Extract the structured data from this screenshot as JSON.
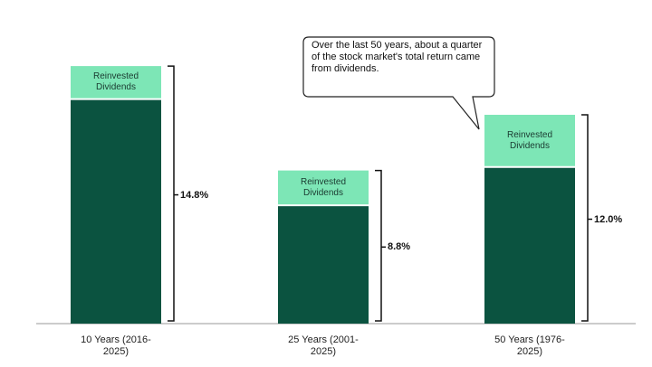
{
  "chart_data": {
    "type": "bar",
    "stacked": true,
    "annotation": "Over the last 50 years, about a quarter of the stock market's total return came from dividends.",
    "categories": [
      "10 Years (2016-2025)",
      "25 Years (2001-2025)",
      "50 Years (1976-2025)"
    ],
    "series": [
      {
        "color": "#0b5340",
        "values": [
          12.9,
          6.8,
          9.0
        ]
      },
      {
        "name": "Reinvested Dividends",
        "color": "#7de6b6",
        "values": [
          1.9,
          2.0,
          3.0
        ]
      }
    ],
    "totals": {
      "values": [
        14.8,
        8.8,
        12.0
      ],
      "value_labels": [
        "14.8%",
        "8.8%",
        "12.0%"
      ]
    }
  }
}
